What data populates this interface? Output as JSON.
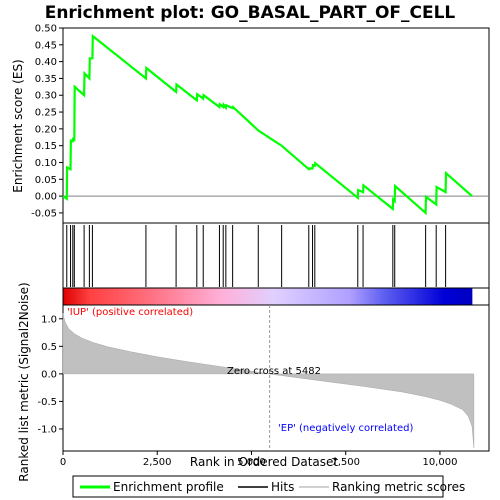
{
  "chart_data": {
    "type": "line",
    "title": "Enrichment plot: GO_BASAL_PART_OF_CELL",
    "es_panel": {
      "ylabel": "Enrichment score (ES)",
      "ylim": [
        -0.08,
        0.5
      ],
      "yticks": [
        "-0.05",
        "0.00",
        "0.05",
        "0.10",
        "0.15",
        "0.20",
        "0.25",
        "0.30",
        "0.35",
        "0.40",
        "0.45",
        "0.50"
      ],
      "ytick_values": [
        -0.05,
        0.0,
        0.05,
        0.1,
        0.15,
        0.2,
        0.25,
        0.3,
        0.35,
        0.4,
        0.45,
        0.5
      ],
      "series": [
        {
          "name": "Enrichment profile",
          "color": "#00ff00",
          "x": [
            0,
            100,
            110,
            200,
            210,
            260,
            270,
            300,
            310,
            560,
            570,
            700,
            710,
            780,
            790,
            2200,
            2210,
            3000,
            3010,
            3550,
            3560,
            3720,
            3730,
            4150,
            4160,
            4250,
            4260,
            4320,
            4330,
            4500,
            4510,
            5180,
            5800,
            6520,
            6530,
            6620,
            6630,
            6680,
            6690,
            7820,
            7830,
            7960,
            7970,
            8750,
            8760,
            8800,
            8810,
            9620,
            9630,
            9900,
            9910,
            10150,
            10160,
            10850
          ],
          "y": [
            0.0,
            -0.008,
            0.085,
            0.08,
            0.165,
            0.163,
            0.17,
            0.168,
            0.325,
            0.3,
            0.365,
            0.35,
            0.41,
            0.41,
            0.476,
            0.35,
            0.381,
            0.31,
            0.332,
            0.285,
            0.303,
            0.29,
            0.3,
            0.265,
            0.273,
            0.265,
            0.272,
            0.263,
            0.27,
            0.262,
            0.265,
            0.195,
            0.15,
            0.08,
            0.082,
            0.082,
            0.092,
            0.09,
            0.098,
            -0.005,
            0.018,
            0.012,
            0.032,
            -0.038,
            -0.01,
            -0.015,
            0.03,
            -0.05,
            -0.002,
            -0.025,
            0.027,
            0.012,
            0.068,
            0.0
          ]
        }
      ]
    },
    "hits": [
      100,
      200,
      260,
      300,
      560,
      700,
      780,
      2200,
      3000,
      3550,
      3720,
      4150,
      4250,
      4320,
      4500,
      5180,
      5800,
      6520,
      6620,
      6680,
      7820,
      7960,
      8750,
      8800,
      9620,
      9900,
      10150
    ],
    "rank_panel": {
      "ylabel": "Ranked list metric (Signal2Noise)",
      "xlabel": "Rank in Ordered Dataset",
      "ylim": [
        -1.4,
        1.25
      ],
      "yticks": [
        "-1.0",
        "-0.5",
        "0.0",
        "0.5",
        "1.0"
      ],
      "ytick_values": [
        -1.0,
        -0.5,
        0.0,
        0.5,
        1.0
      ],
      "xlim": [
        0,
        11000
      ],
      "xticks": [
        "0",
        "2,500",
        "5,000",
        "7,500",
        "10,000"
      ],
      "xtick_values": [
        0,
        2500,
        5000,
        7500,
        10000
      ],
      "metric_x": [
        0,
        50,
        150,
        300,
        500,
        800,
        1200,
        1800,
        2500,
        3300,
        4200,
        5000,
        5482,
        6000,
        7000,
        8000,
        9000,
        9600,
        10000,
        10300,
        10600,
        10750,
        10850,
        10900
      ],
      "metric_y": [
        1.1,
        0.95,
        0.82,
        0.73,
        0.65,
        0.57,
        0.49,
        0.4,
        0.31,
        0.22,
        0.13,
        0.05,
        0.0,
        -0.05,
        -0.14,
        -0.23,
        -0.33,
        -0.41,
        -0.48,
        -0.55,
        -0.65,
        -0.77,
        -0.95,
        -1.35
      ],
      "fill_color": "#c0c0c0",
      "zero_cross_rank": 5482,
      "zero_cross_label": "Zero cross at 5482",
      "positive_label": "'IUP' (positive correlated)",
      "negative_label": "'EP' (negatively correlated)",
      "positive_color": "#ff0000",
      "negative_color": "#0000ff"
    },
    "color_bar": {
      "stops": [
        "#dd0000",
        "#ff4040",
        "#ff7080",
        "#ffb0d8",
        "#e0d0ff",
        "#b0a0ff",
        "#6060f0",
        "#0000d8"
      ],
      "stop_ranks": [
        0,
        700,
        2300,
        4200,
        5600,
        7600,
        8500,
        10100
      ]
    },
    "legend": [
      {
        "label": "Enrichment profile",
        "color": "#00ff00"
      },
      {
        "label": "Hits",
        "color": "#000000"
      },
      {
        "label": "Ranking metric scores",
        "color": "#c0c0c0"
      }
    ]
  }
}
